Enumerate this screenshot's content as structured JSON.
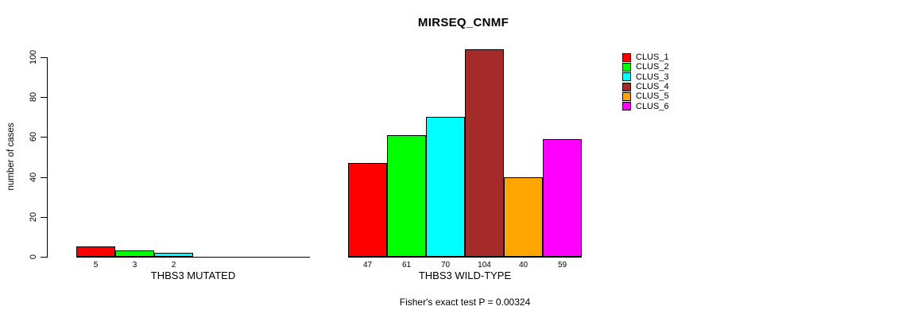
{
  "chart_data": {
    "type": "bar",
    "title": "MIRSEQ_CNMF",
    "ylabel": "number of cases",
    "xlabel": "",
    "ylim": [
      0,
      100
    ],
    "yticks": [
      0,
      20,
      40,
      60,
      80,
      100
    ],
    "grid": false,
    "legend_position": "right",
    "clusters": [
      {
        "name": "CLUS_1",
        "color": "#ff0000"
      },
      {
        "name": "CLUS_2",
        "color": "#00ff00"
      },
      {
        "name": "CLUS_3",
        "color": "#00ffff"
      },
      {
        "name": "CLUS_4",
        "color": "#a52a2a"
      },
      {
        "name": "CLUS_5",
        "color": "#ffa500"
      },
      {
        "name": "CLUS_6",
        "color": "#ff00ff"
      }
    ],
    "groups": [
      {
        "label": "THBS3 MUTATED",
        "values": [
          5,
          3,
          2,
          0,
          0,
          0
        ]
      },
      {
        "label": "THBS3 WILD-TYPE",
        "values": [
          47,
          61,
          70,
          104,
          40,
          59
        ]
      }
    ],
    "footer": "Fisher's exact test P = 0.00324"
  }
}
